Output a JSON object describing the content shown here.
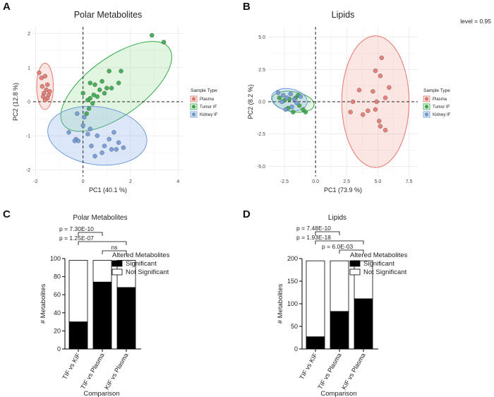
{
  "figure": {
    "panel_labels": [
      "A",
      "B",
      "C",
      "D"
    ],
    "level_note": "level = 0.95"
  },
  "colors": {
    "plasma": "#e5756a",
    "tumor": "#36a94a",
    "kidney": "#6f9ad6",
    "plasma_fill": "rgba(240,140,130,0.22)",
    "tumor_fill": "rgba(120,210,120,0.22)",
    "kidney_fill": "rgba(140,180,235,0.30)",
    "significant": "#000000",
    "not_significant": "#ffffff"
  },
  "chart_data": [
    {
      "type": "scatter",
      "id": "A",
      "title": "Polar Metabolites",
      "xlabel": "PC1 (40.1 %)",
      "ylabel": "PC2 (12.8 %)",
      "xlim": [
        -2.1,
        4.2
      ],
      "ylim": [
        -2.2,
        2.2
      ],
      "xticks": [
        -2,
        0,
        2,
        4
      ],
      "xtick_labels": [
        "-2",
        "0",
        "2",
        "4"
      ],
      "yticks": [
        -2,
        -1,
        0,
        1,
        2
      ],
      "ytick_labels": [
        "-2",
        "-1",
        "0",
        "1",
        "2"
      ],
      "legend_title": "Sample Type",
      "legend_labels": [
        "Plasma",
        "Tumor IF",
        "Kidney IF"
      ],
      "series": [
        {
          "name": "Plasma",
          "key": "plasma",
          "x": [
            -1.85,
            -1.75,
            -1.6,
            -1.5,
            -1.72,
            -1.55,
            -1.65,
            -1.45,
            -1.68,
            -1.5,
            -1.6,
            -1.4
          ],
          "y": [
            0.85,
            0.7,
            0.75,
            0.5,
            0.45,
            0.35,
            0.25,
            0.2,
            0.15,
            0.1,
            0.05,
            0.3
          ],
          "ellipse": {
            "cx": -1.6,
            "cy": 0.45,
            "rx": 0.35,
            "ry": 0.68,
            "angle": 0
          }
        },
        {
          "name": "Tumor IF",
          "key": "tumor",
          "x": [
            0.3,
            0.6,
            0.9,
            1.2,
            1.5,
            0.8,
            0.5,
            1.1,
            0.2,
            0.4,
            1.6,
            2.9,
            3.4,
            0.15,
            0.0,
            0.7,
            0.3,
            0.45,
            1.0,
            0.25
          ],
          "y": [
            0.1,
            0.15,
            0.25,
            0.4,
            0.55,
            0.6,
            0.5,
            0.9,
            0.05,
            -0.05,
            0.9,
            1.95,
            1.75,
            -0.35,
            0.25,
            0.35,
            0.55,
            0.2,
            0.4,
            -0.2
          ],
          "ellipse": {
            "cx": 1.4,
            "cy": 0.45,
            "rx": 2.75,
            "ry": 0.85,
            "angle": 36
          }
        },
        {
          "name": "Kidney IF",
          "key": "kidney",
          "x": [
            -0.6,
            -0.3,
            0.0,
            0.3,
            0.6,
            0.9,
            1.2,
            1.5,
            -0.2,
            0.2,
            0.5,
            0.8,
            1.1,
            1.4,
            1.7,
            -0.35,
            -0.25,
            0.35,
            0.05,
            1.3
          ],
          "y": [
            -0.9,
            -1.1,
            -0.7,
            -0.8,
            -1.0,
            -1.3,
            -1.4,
            -1.2,
            -1.15,
            -0.95,
            -1.6,
            -1.5,
            -1.1,
            -1.4,
            -1.35,
            -1.15,
            -0.35,
            -1.3,
            -0.45,
            -0.9
          ],
          "ellipse": {
            "cx": 0.6,
            "cy": -1.0,
            "rx": 2.1,
            "ry": 0.85,
            "angle": -8
          }
        }
      ]
    },
    {
      "type": "scatter",
      "id": "B",
      "title": "Lipids",
      "xlabel": "PC1 (73.9 %)",
      "ylabel": "PC2 (8.2 %)",
      "xlim": [
        -3.8,
        8.2
      ],
      "ylim": [
        -5.8,
        5.8
      ],
      "xticks": [
        -2.5,
        0,
        2.5,
        5,
        7.5
      ],
      "xtick_labels": [
        "-2.5",
        "0.0",
        "2.5",
        "5.0",
        "7.5"
      ],
      "yticks": [
        -5,
        -2.5,
        0,
        2.5,
        5
      ],
      "ytick_labels": [
        "-5.0",
        "-2.5",
        "0.0",
        "2.5",
        "5.0"
      ],
      "legend_title": "Sample Type",
      "legend_labels": [
        "Plasma",
        "Tumor IF",
        "Kidney IF"
      ],
      "series": [
        {
          "name": "Plasma",
          "key": "plasma",
          "x": [
            5.3,
            4.8,
            5.9,
            4.6,
            5.2,
            5.6,
            3.5,
            3.0,
            2.8,
            4.2,
            4.8,
            3.8,
            5.2,
            5.6,
            5.1,
            4.9
          ],
          "y": [
            3.4,
            2.4,
            1.1,
            0.8,
            2.0,
            0.3,
            0.9,
            0.0,
            -0.8,
            -0.7,
            -0.6,
            -1.0,
            -1.9,
            -2.2,
            -1.5,
            0.0
          ],
          "ellipse": {
            "cx": 4.8,
            "cy": 0.0,
            "rx": 2.7,
            "ry": 5.1,
            "angle": 0
          }
        },
        {
          "name": "Tumor IF",
          "key": "tumor",
          "x": [
            -2.9,
            -2.5,
            -2.1,
            -1.6,
            -1.3,
            -1.0,
            -2.2,
            -1.8,
            -0.8,
            -1.4
          ],
          "y": [
            0.3,
            0.1,
            0.2,
            0.3,
            -0.3,
            -0.6,
            -0.5,
            -0.8,
            -0.8,
            0.5
          ],
          "ellipse": {
            "cx": -1.8,
            "cy": 0.0,
            "rx": 1.7,
            "ry": 0.78,
            "angle": -10
          }
        },
        {
          "name": "Kidney IF",
          "key": "kidney",
          "x": [
            -3.0,
            -2.6,
            -2.3,
            -2.0,
            -1.7,
            -1.5,
            -2.7,
            -1.9,
            -2.4,
            -1.2
          ],
          "y": [
            0.7,
            0.5,
            0.3,
            0.6,
            0.2,
            -0.1,
            0.0,
            -0.4,
            -0.6,
            0.4
          ],
          "ellipse": {
            "cx": -2.1,
            "cy": 0.15,
            "rx": 1.45,
            "ry": 0.85,
            "angle": -10
          }
        }
      ]
    },
    {
      "type": "bar",
      "id": "C",
      "title": "Polar Metabolites",
      "xlabel": "Comparison",
      "ylabel": "# Metabolites",
      "ylim": [
        0,
        100
      ],
      "yticks": [
        0,
        20,
        40,
        60,
        80,
        100
      ],
      "categories": [
        "TIF vs KIF",
        "TIF vs Plasma",
        "KIF vs Plasma"
      ],
      "series": [
        {
          "name": "Significant",
          "key": "significant",
          "values": [
            30,
            74,
            68
          ]
        },
        {
          "name": "Not Significant",
          "key": "not_significant",
          "values": [
            68,
            24,
            30
          ]
        }
      ],
      "legend_title": "Altered Metabolites",
      "legend_labels": [
        "Significant",
        "Not Significant"
      ],
      "annotations": [
        {
          "text": "p = 7.30E-10",
          "from": 0,
          "to": 1
        },
        {
          "text": "p = 1.25E-07",
          "from": 0,
          "to": 2
        },
        {
          "text": "ns",
          "from": 1,
          "to": 2
        }
      ]
    },
    {
      "type": "bar",
      "id": "D",
      "title": "Lipids",
      "xlabel": "Comparison",
      "ylabel": "# Metabolites",
      "ylim": [
        0,
        200
      ],
      "yticks": [
        0,
        50,
        100,
        150,
        200
      ],
      "categories": [
        "TIF vs KIF",
        "TIF vs Plasma",
        "KIF vs Plasma"
      ],
      "series": [
        {
          "name": "Significant",
          "key": "significant",
          "values": [
            27,
            83,
            111
          ]
        },
        {
          "name": "Not Significant",
          "key": "not_significant",
          "values": [
            168,
            112,
            84
          ]
        }
      ],
      "legend_title": "Altered Metabolites",
      "legend_labels": [
        "Significant",
        "Not Significant"
      ],
      "annotations": [
        {
          "text": "p = 7.48E-10",
          "from": 0,
          "to": 1
        },
        {
          "text": "p = 1.93E-18",
          "from": 0,
          "to": 2
        },
        {
          "text": "p = 6.0E-03",
          "from": 1,
          "to": 2
        }
      ]
    }
  ]
}
